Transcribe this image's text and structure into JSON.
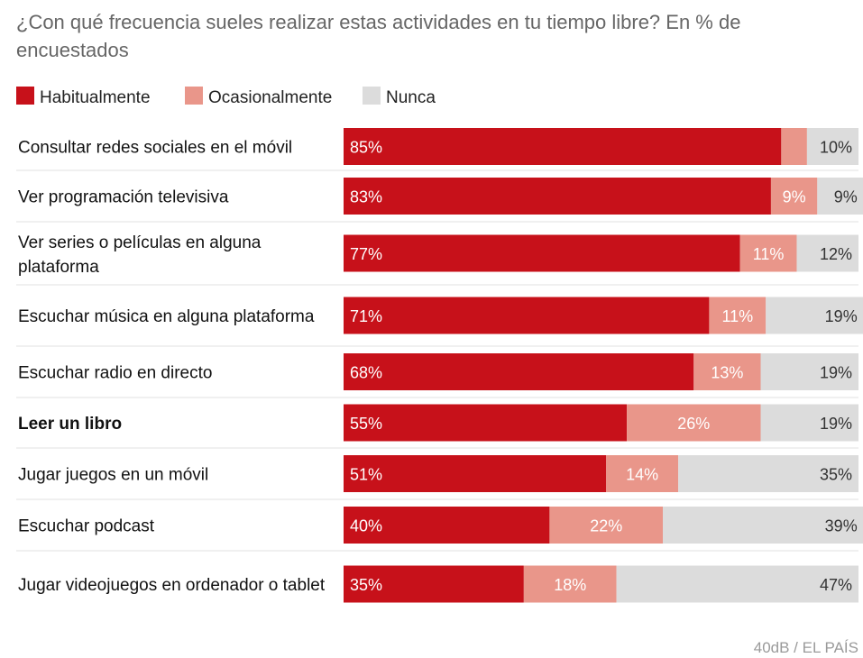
{
  "chart_data": {
    "type": "bar",
    "orientation": "horizontal",
    "stacked": true,
    "title": "¿Con qué frecuencia sueles realizar estas actividades en tu tiempo libre? En % de encuestados",
    "categories": [
      "Consultar redes sociales en el móvil",
      "Ver programación televisiva",
      "Ver series o películas en alguna plataforma",
      "Escuchar música en alguna plataforma",
      "Escuchar radio en directo",
      "Leer un libro",
      "Jugar juegos en un móvil",
      "Escuchar podcast",
      "Jugar videojuegos en ordenador o tablet"
    ],
    "highlighted_category": "Leer un libro",
    "series": [
      {
        "name": "Habitualmente",
        "color": "#c7111a",
        "values": [
          85,
          83,
          77,
          71,
          68,
          55,
          51,
          40,
          35
        ],
        "labels": [
          "85%",
          "83%",
          "77%",
          "71%",
          "68%",
          "55%",
          "51%",
          "40%",
          "35%"
        ]
      },
      {
        "name": "Ocasionalmente",
        "color": "#e9968a",
        "values": [
          5,
          9,
          11,
          11,
          13,
          26,
          14,
          22,
          18
        ],
        "labels": [
          "",
          "9%",
          "11%",
          "11%",
          "13%",
          "26%",
          "14%",
          "22%",
          "18%"
        ]
      },
      {
        "name": "Nunca",
        "color": "#dcdcdc",
        "values": [
          10,
          9,
          12,
          19,
          19,
          19,
          35,
          39,
          47
        ],
        "labels": [
          "10%",
          "9%",
          "12%",
          "19%",
          "19%",
          "19%",
          "35%",
          "39%",
          "47%"
        ]
      }
    ],
    "xlim": [
      0,
      100
    ],
    "legend_position": "top-left",
    "grid": false
  },
  "source": "40dB / EL PAÍS"
}
